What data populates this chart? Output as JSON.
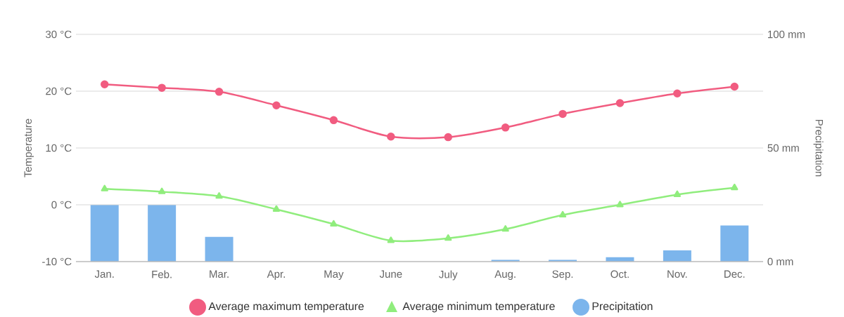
{
  "chart_data": {
    "type": "line",
    "categories": [
      "Jan.",
      "Feb.",
      "Mar.",
      "Apr.",
      "May",
      "June",
      "July",
      "Aug.",
      "Sep.",
      "Oct.",
      "Nov.",
      "Dec."
    ],
    "series": [
      {
        "name": "Average maximum temperature",
        "color": "#f15c80",
        "marker": "circle",
        "values": [
          21.2,
          20.6,
          19.9,
          17.5,
          14.9,
          12.0,
          11.9,
          13.6,
          16.0,
          17.9,
          19.6,
          20.8
        ]
      },
      {
        "name": "Average minimum temperature",
        "color": "#90ed7d",
        "marker": "triangle",
        "values": [
          2.8,
          2.3,
          1.5,
          -0.8,
          -3.4,
          -6.3,
          -5.9,
          -4.3,
          -1.8,
          0,
          1.8,
          3.0
        ]
      },
      {
        "name": "Precipitation",
        "type": "bar",
        "axis": "y2",
        "color": "#7cb5ec",
        "values": [
          25,
          25,
          10.9,
          0,
          0,
          0,
          0,
          0.8,
          0.8,
          1.9,
          4.9,
          15.9
        ]
      }
    ],
    "ylabel": "Temperature",
    "y2label": "Precipitation",
    "ylim": [
      -10,
      30
    ],
    "yticks": [
      {
        "value": -10,
        "label": "-10 °C"
      },
      {
        "value": 0,
        "label": "0 °C"
      },
      {
        "value": 10,
        "label": "10 °C"
      },
      {
        "value": 20,
        "label": "20 °C"
      },
      {
        "value": 30,
        "label": "30 °C"
      }
    ],
    "y2lim": [
      0,
      100
    ],
    "y2ticks": [
      {
        "value": 0,
        "label": "0 mm"
      },
      {
        "value": 50,
        "label": "50 mm"
      },
      {
        "value": 100,
        "label": "100 mm"
      }
    ],
    "grid": "y",
    "legend": "bottom"
  }
}
